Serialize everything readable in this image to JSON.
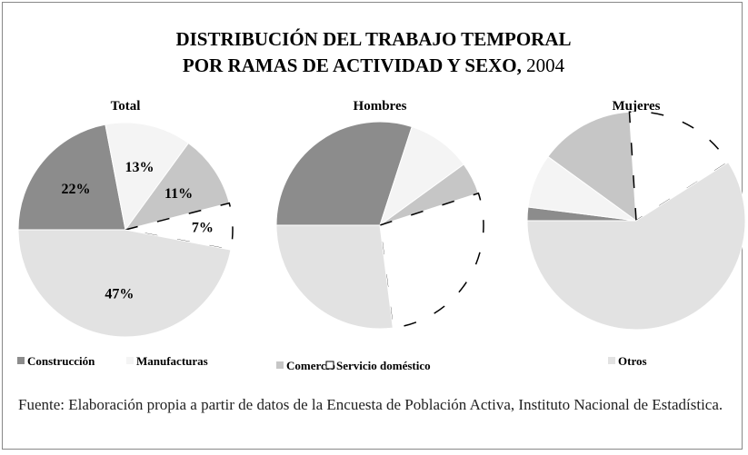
{
  "title": [
    "DISTRIBUCIÓN DEL TRABAJO TEMPORAL",
    "POR RAMAS DE ACTIVIDAD Y SEXO,",
    "2004"
  ],
  "source": "Fuente: Elaboración propia a partir de datos de la Encuesta de Población Activa, Instituto Nacional de Estadística.",
  "chart_data": [
    {
      "type": "pie",
      "title": "Total",
      "categories": [
        "Construcción",
        "Manufacturas",
        "Comercio",
        "Servicio doméstico",
        "Otros"
      ],
      "values": [
        22,
        13,
        11,
        7,
        47
      ],
      "value_labels": [
        "22%",
        "13%",
        "11%",
        "7%",
        "47%"
      ],
      "colors": [
        "#8c8c8c",
        "#f4f4f4",
        "#c6c6c6",
        "#ffffff",
        "#e2e2e2"
      ]
    },
    {
      "type": "pie",
      "title": "Hombres",
      "categories": [
        "Construcción",
        "Manufacturas",
        "Comercio",
        "Servicio doméstico",
        "Otros"
      ],
      "values": [
        30,
        10,
        5,
        28,
        27
      ],
      "colors": [
        "#8c8c8c",
        "#f4f4f4",
        "#c6c6c6",
        "#ffffff",
        "#e2e2e2"
      ]
    },
    {
      "type": "pie",
      "title": "Mujeres",
      "categories": [
        "Construcción",
        "Manufacturas",
        "Comercio",
        "Servicio doméstico",
        "Otros"
      ],
      "values": [
        2,
        8,
        14,
        17,
        59
      ],
      "colors": [
        "#8c8c8c",
        "#f4f4f4",
        "#c6c6c6",
        "#ffffff",
        "#e2e2e2"
      ]
    }
  ]
}
